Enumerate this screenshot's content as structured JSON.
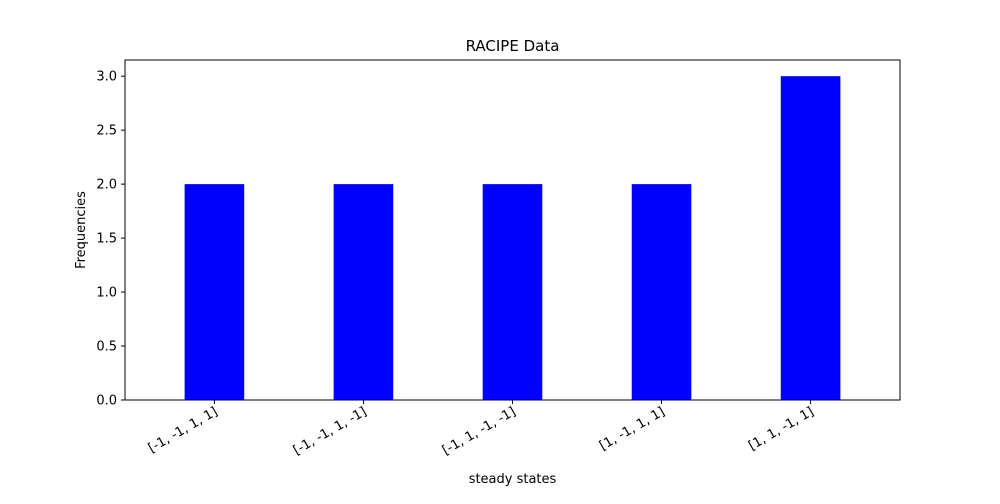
{
  "chart_data": {
    "type": "bar",
    "title": "RACIPE Data",
    "xlabel": "steady states",
    "ylabel": "Frequencies",
    "categories": [
      "[-1, -1, 1, 1]",
      "[-1, -1, 1, -1]",
      "[-1, 1, -1, -1]",
      "[1, -1, 1, 1]",
      "[1, 1, -1, 1]"
    ],
    "values": [
      2,
      2,
      2,
      2,
      3
    ],
    "ylim": [
      0,
      3.15
    ],
    "yticks": [
      "0.0",
      "0.5",
      "1.0",
      "1.5",
      "2.0",
      "2.5",
      "3.0"
    ],
    "bar_color": "#0000ff",
    "grid": false
  }
}
